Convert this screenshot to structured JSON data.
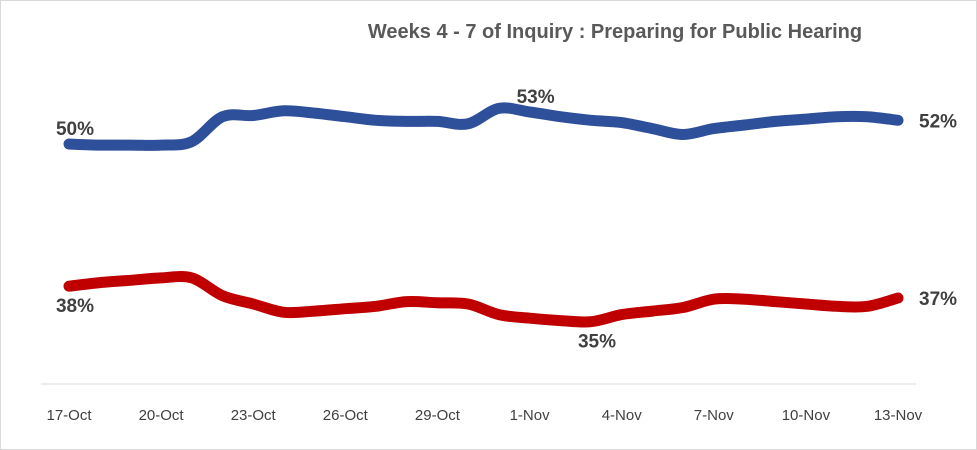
{
  "chart_data": {
    "type": "line",
    "title": "Weeks 4 - 7 of Inquiry : Preparing for Public Hearing",
    "xlabel": "",
    "ylabel": "",
    "x": [
      "17-Oct",
      "18-Oct",
      "19-Oct",
      "20-Oct",
      "21-Oct",
      "22-Oct",
      "23-Oct",
      "24-Oct",
      "25-Oct",
      "26-Oct",
      "27-Oct",
      "28-Oct",
      "29-Oct",
      "30-Oct",
      "31-Oct",
      "1-Nov",
      "2-Nov",
      "3-Nov",
      "4-Nov",
      "5-Nov",
      "6-Nov",
      "7-Nov",
      "8-Nov",
      "9-Nov",
      "10-Nov",
      "11-Nov",
      "12-Nov",
      "13-Nov"
    ],
    "tick_labels": [
      "17-Oct",
      "20-Oct",
      "23-Oct",
      "26-Oct",
      "29-Oct",
      "1-Nov",
      "4-Nov",
      "7-Nov",
      "10-Nov",
      "13-Nov"
    ],
    "ylim": [
      30,
      57
    ],
    "grid": false,
    "series": [
      {
        "color": "#2e4f9a",
        "values": [
          50.0,
          49.9,
          49.9,
          49.9,
          50.2,
          52.3,
          52.4,
          52.8,
          52.6,
          52.3,
          52.0,
          51.9,
          51.9,
          51.7,
          53.0,
          52.7,
          52.3,
          52.0,
          51.8,
          51.3,
          50.8,
          51.3,
          51.6,
          51.9,
          52.1,
          52.3,
          52.3,
          52.0
        ]
      },
      {
        "color": "#c00000",
        "values": [
          38.0,
          38.3,
          38.5,
          38.7,
          38.7,
          37.2,
          36.5,
          35.8,
          35.9,
          36.1,
          36.3,
          36.7,
          36.6,
          36.5,
          35.6,
          35.3,
          35.1,
          35.0,
          35.6,
          35.9,
          36.2,
          36.9,
          36.9,
          36.7,
          36.5,
          36.3,
          36.3,
          37.0
        ]
      }
    ],
    "data_labels": [
      {
        "text": "50%",
        "series": 0,
        "index": 0,
        "position": "above"
      },
      {
        "text": "53%",
        "series": 0,
        "index": 15,
        "position": "above"
      },
      {
        "text": "52%",
        "series": 0,
        "index": 27,
        "position": "right"
      },
      {
        "text": "38%",
        "series": 1,
        "index": 0,
        "position": "below"
      },
      {
        "text": "35%",
        "series": 1,
        "index": 17,
        "position": "below"
      },
      {
        "text": "37%",
        "series": 1,
        "index": 27,
        "position": "right"
      }
    ]
  }
}
